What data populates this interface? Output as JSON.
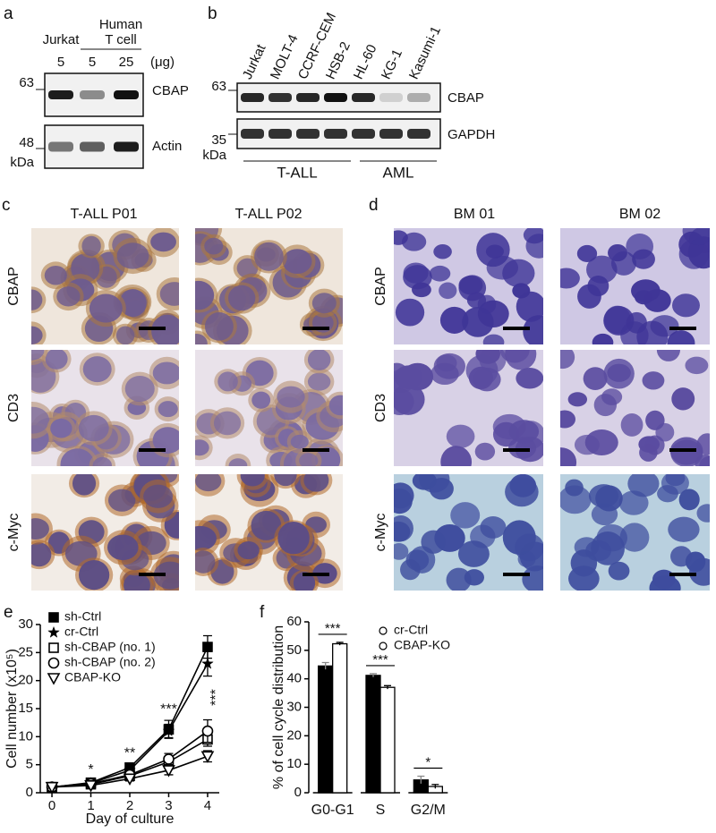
{
  "panel_a": {
    "label": "a",
    "samples": [
      "Jurkat",
      "Human",
      "T cell"
    ],
    "amounts": [
      5,
      5,
      25
    ],
    "amount_unit": "(μg)",
    "markers": [
      63,
      48
    ],
    "marker_unit": "kDa",
    "proteins": [
      "CBAP",
      "Actin"
    ]
  },
  "panel_b": {
    "label": "b",
    "lanes": [
      "Jurkat",
      "MOLT-4",
      "CCRF-CEM",
      "HSB-2",
      "HL-60",
      "KG-1",
      "Kasumi-1"
    ],
    "markers": [
      63,
      35
    ],
    "marker_unit": "kDa",
    "proteins": [
      "CBAP",
      "GAPDH"
    ],
    "groups": [
      "T-ALL",
      "AML"
    ]
  },
  "panel_c": {
    "label": "c",
    "columns": [
      "T-ALL P01",
      "T-ALL P02"
    ],
    "rows": [
      "CBAP",
      "CD3",
      "c-Myc"
    ]
  },
  "panel_d": {
    "label": "d",
    "columns": [
      "BM 01",
      "BM 02"
    ],
    "rows": [
      "CBAP",
      "CD3",
      "c-Myc"
    ]
  },
  "chart_data": [
    {
      "panel_label": "e",
      "type": "line",
      "x": [
        0,
        1,
        2,
        3,
        4
      ],
      "xlim": [
        -0.3,
        4.3
      ],
      "xticks": [
        0,
        1,
        2,
        3,
        4
      ],
      "ylim": [
        0,
        30
      ],
      "yticks": [
        0,
        5,
        10,
        15,
        20,
        25,
        30
      ],
      "xlabel": "Day of culture",
      "ylabel": "Cell number (x10⁵)",
      "legend": "upper left",
      "series": [
        {
          "name": "sh-Ctrl",
          "color": "#000000",
          "marker": "square-filled",
          "values": [
            1,
            1.8,
            4.5,
            11.3,
            26
          ],
          "errors": [
            0.3,
            0.3,
            0.6,
            1.6,
            2
          ]
        },
        {
          "name": "cr-Ctrl",
          "color": "#000000",
          "marker": "star",
          "values": [
            1,
            1.7,
            4,
            11,
            23
          ],
          "errors": [
            0.2,
            0.3,
            0.5,
            1.2,
            2.2
          ]
        },
        {
          "name": "sh-CBAP (no. 1)",
          "color": "#000000",
          "marker": "square-open",
          "values": [
            1,
            1.5,
            3,
            5.5,
            9.5
          ],
          "errors": [
            0.2,
            0.3,
            0.5,
            1,
            1.2
          ]
        },
        {
          "name": "sh-CBAP (no. 2)",
          "color": "#000000",
          "marker": "circle-open",
          "values": [
            1,
            1.6,
            3.2,
            6,
            11
          ],
          "errors": [
            0.2,
            0.3,
            0.5,
            1,
            2
          ]
        },
        {
          "name": "CBAP-KO",
          "color": "#000000",
          "marker": "triangle-down-open",
          "values": [
            1,
            1.3,
            2.5,
            4,
            6.5
          ],
          "errors": [
            0.2,
            0.2,
            0.4,
            0.8,
            1
          ]
        }
      ],
      "annotations": [
        "*",
        "**",
        "***",
        "***"
      ]
    },
    {
      "panel_label": "f",
      "type": "bar",
      "categories": [
        "G0-G1",
        "S",
        "G2/M"
      ],
      "ylim": [
        0,
        60
      ],
      "yticks": [
        0,
        10,
        20,
        30,
        40,
        50,
        60
      ],
      "ylabel": "% of cell cycle distribution",
      "legend": "upper right",
      "series": [
        {
          "name": "cr-Ctrl",
          "color": "#000000",
          "values": [
            44.5,
            41.2,
            4.5
          ],
          "errors": [
            1.2,
            0.6,
            1.3
          ]
        },
        {
          "name": "CBAP-KO",
          "color": "#ffffff",
          "values": [
            52.3,
            37,
            2.2
          ],
          "errors": [
            0.5,
            0.6,
            0.7
          ]
        }
      ],
      "annotations": [
        "***",
        "***",
        "*"
      ]
    }
  ]
}
